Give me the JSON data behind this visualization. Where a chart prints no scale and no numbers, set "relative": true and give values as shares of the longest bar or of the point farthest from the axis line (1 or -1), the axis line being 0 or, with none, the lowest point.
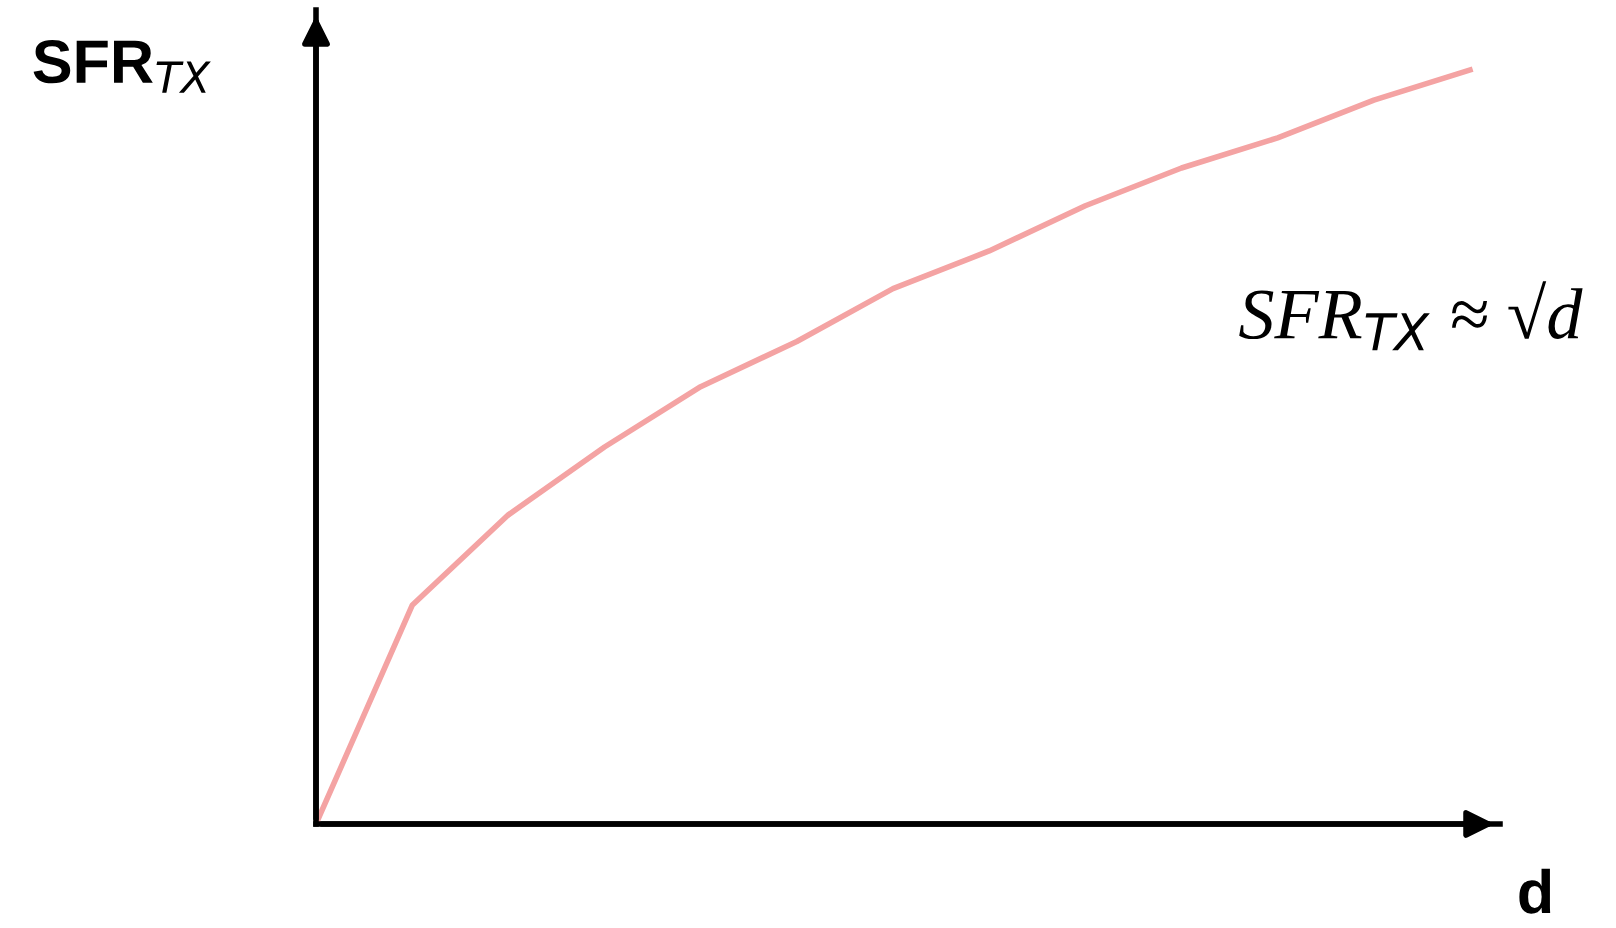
{
  "chart_data": {
    "type": "line",
    "relative": true,
    "ylabel": "SFR$_{TX}$",
    "xlabel": "d",
    "annotations": [
      "SFR$_{TX}$ ≈ √d"
    ],
    "categories": [
      null,
      null,
      null,
      null,
      null,
      null,
      null,
      null,
      null,
      null,
      null,
      null,
      null
    ],
    "series": [
      {
        "color": "#f4a3a3",
        "values": [
          0,
          0.29,
          0.41,
          0.5,
          0.58,
          0.64,
          0.71,
          0.76,
          0.82,
          0.87,
          0.91,
          0.96,
          1
        ]
      }
    ]
  }
}
